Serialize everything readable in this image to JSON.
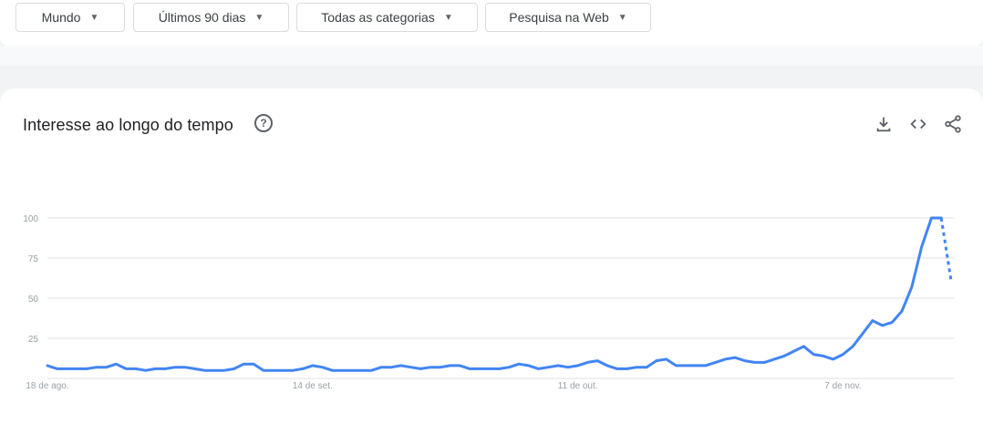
{
  "filters": {
    "region": "Mundo",
    "period": "Últimos 90 dias",
    "category": "Todas as categorias",
    "search_type": "Pesquisa na Web"
  },
  "card": {
    "title": "Interesse ao longo do tempo",
    "help_glyph": "?"
  },
  "icons": [
    "help-icon",
    "download-icon",
    "embed-code-icon",
    "share-icon"
  ],
  "colors": {
    "line": "#4285f4",
    "grid": "#e0e0e0",
    "tick": "#9aa0a6"
  },
  "chart_data": {
    "type": "line",
    "title": "Interesse ao longo do tempo",
    "xlabel": "",
    "ylabel": "",
    "ylim": [
      0,
      100
    ],
    "y_ticks": [
      25,
      50,
      75,
      100
    ],
    "x_tick_labels": [
      {
        "label": "18 de ago.",
        "index": 0
      },
      {
        "label": "14 de set.",
        "index": 27
      },
      {
        "label": "11 de out.",
        "index": 54
      },
      {
        "label": "7 de nov.",
        "index": 81
      }
    ],
    "grid": true,
    "partial_data_last_point": true,
    "series": [
      {
        "values": [
          8,
          6,
          6,
          6,
          6,
          7,
          7,
          9,
          6,
          6,
          5,
          6,
          6,
          7,
          7,
          6,
          5,
          5,
          5,
          6,
          9,
          9,
          5,
          5,
          5,
          5,
          6,
          8,
          7,
          5,
          5,
          5,
          5,
          5,
          7,
          7,
          8,
          7,
          6,
          7,
          7,
          8,
          8,
          6,
          6,
          6,
          6,
          7,
          9,
          8,
          6,
          7,
          8,
          7,
          8,
          10,
          11,
          8,
          6,
          6,
          7,
          7,
          11,
          12,
          8,
          8,
          8,
          8,
          10,
          12,
          13,
          11,
          10,
          10,
          12,
          14,
          17,
          20,
          15,
          14,
          12,
          15,
          20,
          28,
          36,
          33,
          35,
          42,
          57,
          82,
          100,
          100,
          61
        ]
      }
    ]
  }
}
